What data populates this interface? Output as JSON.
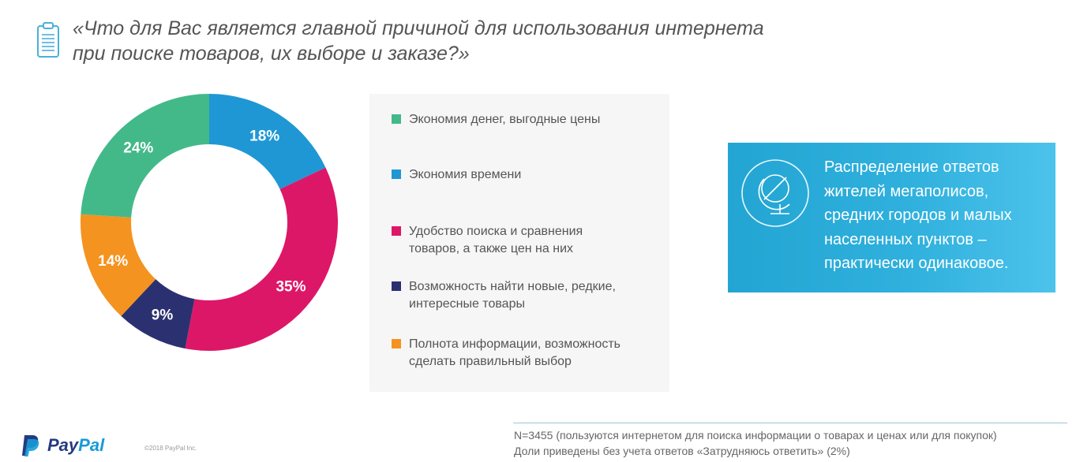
{
  "title": {
    "line1": "«Что для Вас является главной причиной для использования интернета",
    "line2": "при поиске товаров, их выборе и заказе?»"
  },
  "chart_data": {
    "type": "pie",
    "donut": true,
    "unit": "%",
    "series": [
      {
        "name": "Экономия времени",
        "value": 18,
        "label": "18%",
        "color": "#1f97d4"
      },
      {
        "name": "Удобство поиска и сравнения товаров, а также цен на них",
        "value": 35,
        "label": "35%",
        "color": "#dd1767"
      },
      {
        "name": "Возможность найти новые, редкие, интересные товары",
        "value": 9,
        "label": "9%",
        "color": "#2b3170"
      },
      {
        "name": "Полнота информации, возможность сделать правильный выбор",
        "value": 14,
        "label": "14%",
        "color": "#f4931f"
      },
      {
        "name": "Экономия денег, выгодные цены",
        "value": 24,
        "label": "24%",
        "color": "#43b98a"
      }
    ],
    "start_angle_deg": 0,
    "direction": "clockwise"
  },
  "legend": {
    "items": [
      {
        "lines": [
          "Экономия денег, выгодные цены"
        ],
        "color": "#43b98a"
      },
      {
        "lines": [
          "Экономия времени"
        ],
        "color": "#1f97d4"
      },
      {
        "lines": [
          "Удобство поиска и сравнения",
          "товаров, а также цен на них"
        ],
        "color": "#dd1767"
      },
      {
        "lines": [
          "Возможность найти новые, редкие,",
          "интересные товары"
        ],
        "color": "#2b3170"
      },
      {
        "lines": [
          "Полнота информации, возможность",
          "сделать правильный выбор"
        ],
        "color": "#f4931f"
      }
    ]
  },
  "info_box": {
    "icon": "globe-icon",
    "lines": [
      "Распределение ответов",
      "жителей мегаполисов,",
      "средних городов и малых",
      "населенных пунктов –",
      "практически одинаковое."
    ]
  },
  "footer": {
    "logo": {
      "pay": "Pay",
      "pal": "Pal"
    },
    "copyright": "©2018 PayPal Inc.",
    "note_line1": "N=3455 (пользуются интернетом для поиска информации о товарах и ценах или для покупок)",
    "note_line2": "Доли приведены без учета ответов «Затрудняюсь ответить» (2%)"
  },
  "icons": {
    "question": "clipboard-icon",
    "logo": "paypal-logo-icon"
  }
}
